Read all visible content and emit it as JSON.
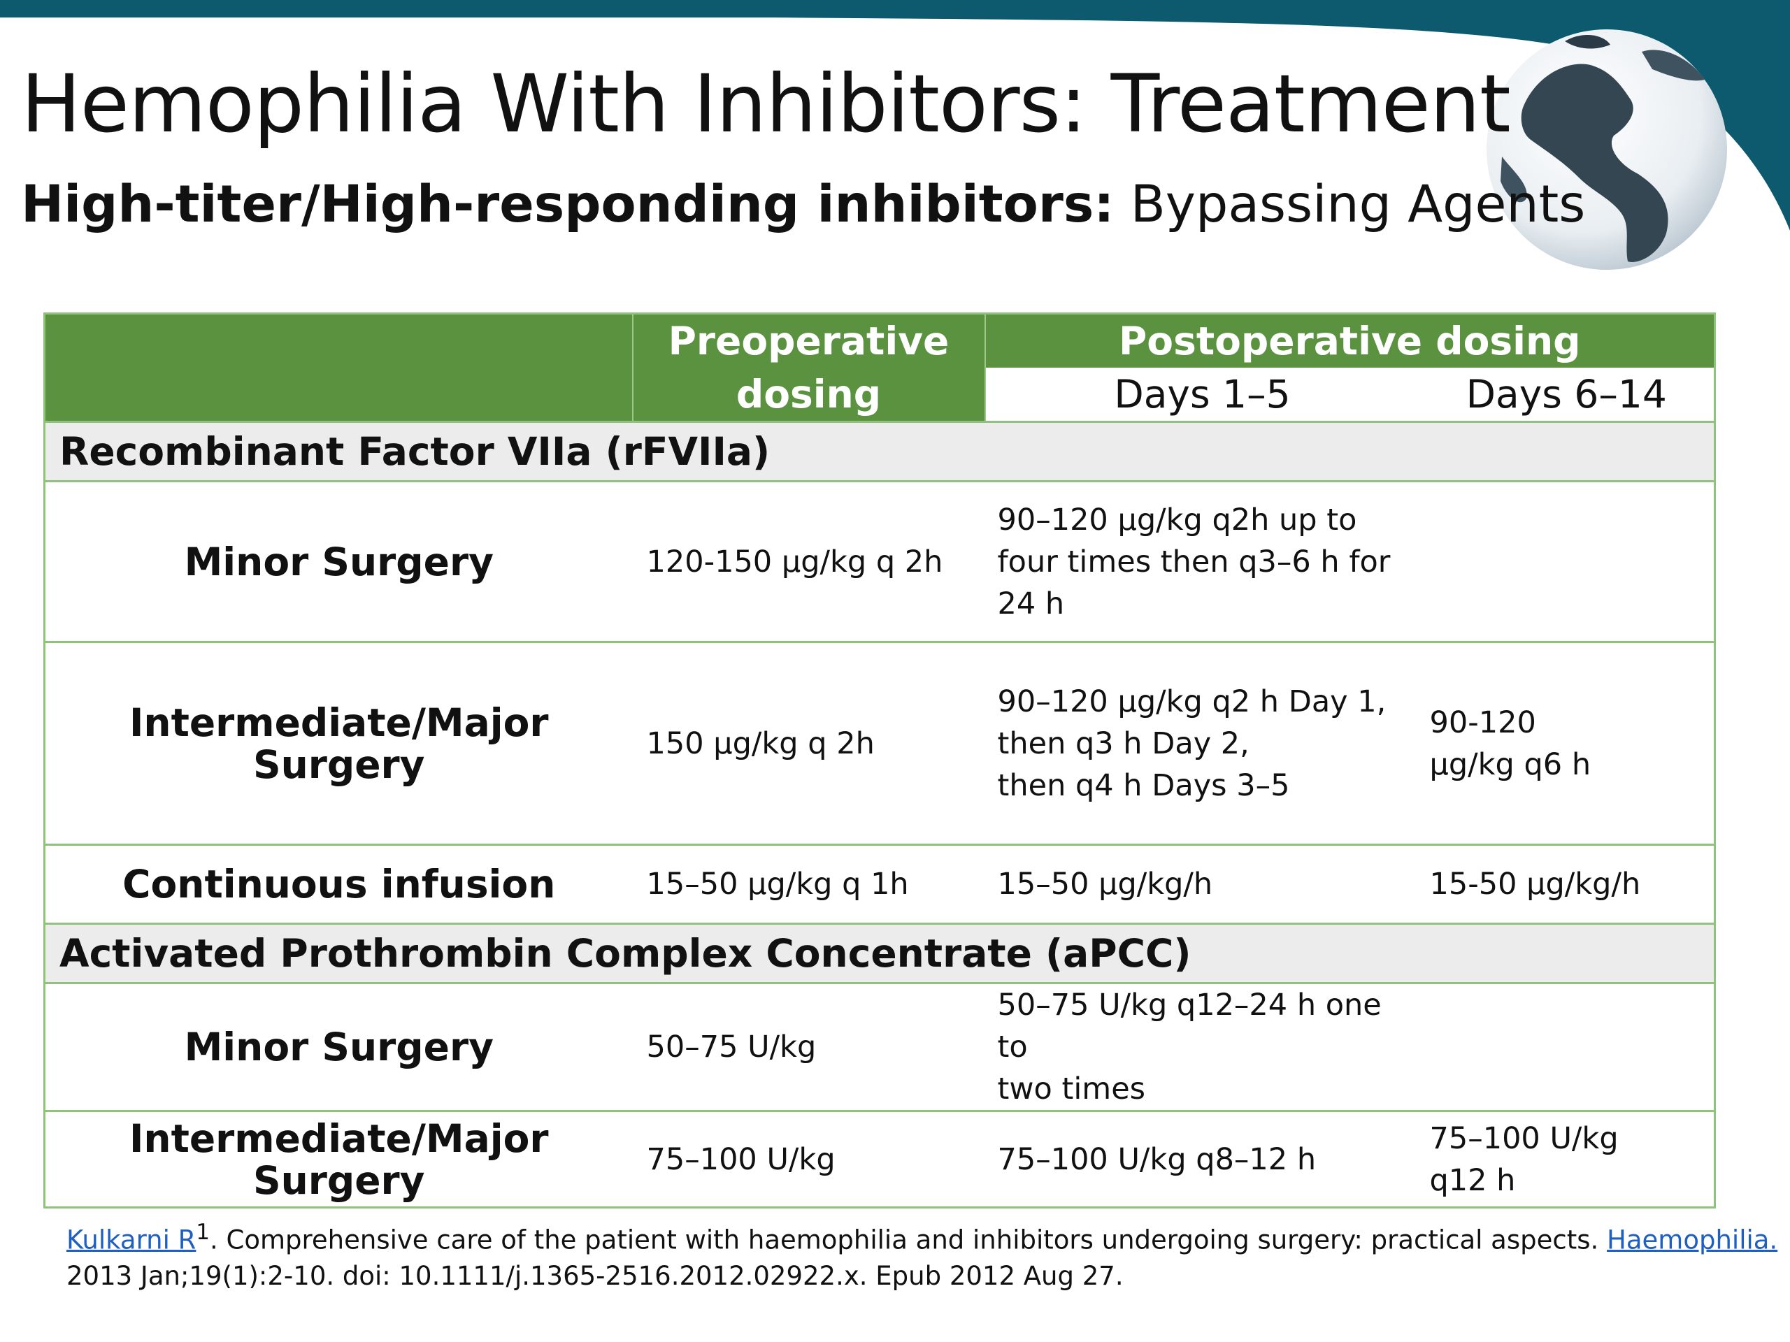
{
  "slide": {
    "title": "Hemophilia With Inhibitors: Treatment",
    "subtitle_bold": "High-titer/High-responding inhibitors:",
    "subtitle_rest": "Bypassing Agents",
    "colors": {
      "banner": "#0d5a6e",
      "header_green": "#5b9240",
      "border_green": "#8fc27a",
      "section_gray": "#ececec",
      "link_blue": "#1f5fbf"
    },
    "globe_icon": "globe-icon"
  },
  "table": {
    "headers": {
      "preoperative": "Preoperative dosing",
      "postoperative": "Postoperative dosing",
      "days_1_5": "Days 1–5",
      "days_6_14": "Days 6–14"
    },
    "sections": [
      {
        "title": "Recombinant Factor VIIa (rFVIIa)",
        "rows": [
          {
            "label": "Minor Surgery",
            "pre": "120-150 µg/kg q 2h",
            "post1": "90–120 µg/kg q2h up to\nfour times then   q3–6 h for\n24 h",
            "post2": ""
          },
          {
            "label": "Intermediate/Major Surgery",
            "pre": "150 µg/kg q 2h",
            "post1": "90–120 µg/kg q2 h Day 1,\nthen q3 h Day 2,\nthen q4 h Days 3–5",
            "post2": "90-120\n µg/kg q6 h"
          },
          {
            "label": "Continuous infusion",
            "pre": "15–50 µg/kg q 1h",
            "post1": "15–50 µg/kg/h",
            "post2": "15-50 µg/kg/h"
          }
        ]
      },
      {
        "title": "Activated Prothrombin Complex Concentrate (aPCC)",
        "rows": [
          {
            "label": "Minor Surgery",
            "pre": "50–75 U/kg",
            "post1": "50–75 U/kg q12–24 h one to\ntwo times",
            "post2": ""
          },
          {
            "label": "Intermediate/Major Surgery",
            "pre": "75–100 U/kg",
            "post1": "75–100 U/kg q8–12 h",
            "post2": "75–100 U/kg\nq12 h"
          }
        ]
      }
    ]
  },
  "reference": {
    "author_link": "Kulkarni R",
    "superscript": "1",
    "text": ". Comprehensive care of the patient with haemophilia and inhibitors undergoing surgery: practical aspects. ",
    "journal_link": "Haemophilia.",
    "line2": "2013 Jan;19(1):2-10. doi: 10.1111/j.1365-2516.2012.02922.x. Epub 2012 Aug 27."
  }
}
